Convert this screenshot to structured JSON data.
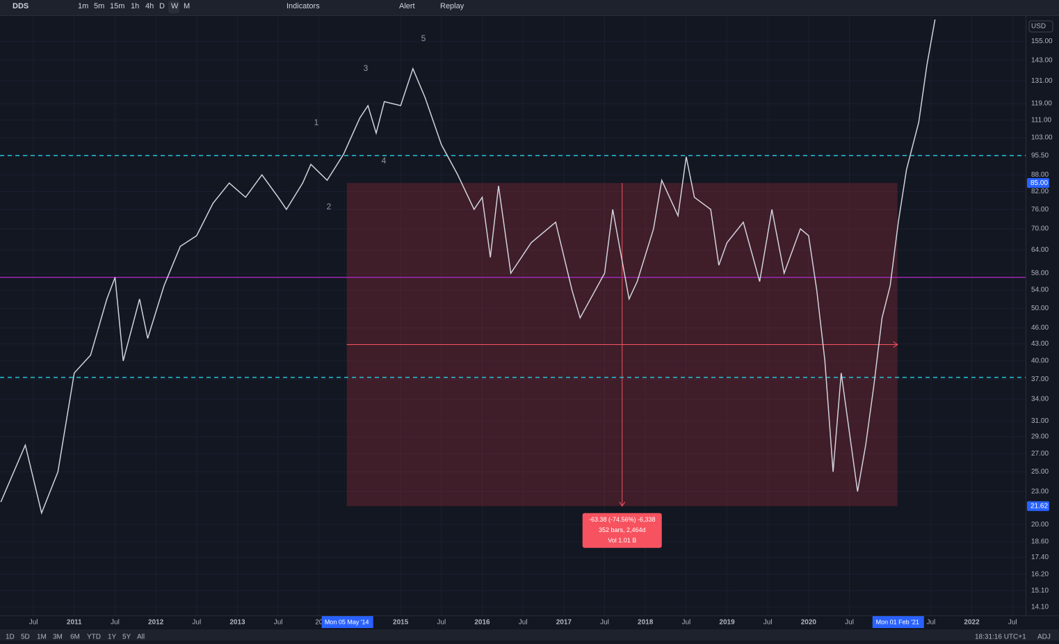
{
  "toolbar": {
    "symbol": "DDS",
    "intervals": [
      "1m",
      "5m",
      "15m",
      "1h",
      "4h",
      "D",
      "W",
      "M"
    ],
    "indicators": "Indicators",
    "alert": "Alert",
    "replay": "Replay"
  },
  "currency": "USD",
  "bottom_bar": {
    "ranges": [
      "1D",
      "5D",
      "1M",
      "3M",
      "6M",
      "YTD",
      "1Y",
      "5Y",
      "All"
    ],
    "clock": "18:31:16 UTC+1",
    "adj": "ADJ"
  },
  "chart_data": {
    "type": "line",
    "log_scale": true,
    "grid": true,
    "color": "#d1d4dc",
    "x": [
      2010.1,
      2010.4,
      2010.6,
      2010.8,
      2011.0,
      2011.2,
      2011.4,
      2011.5,
      2011.6,
      2011.8,
      2011.9,
      2012.1,
      2012.3,
      2012.5,
      2012.7,
      2012.9,
      2013.1,
      2013.3,
      2013.5,
      2013.6,
      2013.8,
      2013.9,
      2014.1,
      2014.3,
      2014.5,
      2014.6,
      2014.7,
      2014.8,
      2015.0,
      2015.15,
      2015.3,
      2015.5,
      2015.7,
      2015.9,
      2016.0,
      2016.1,
      2016.2,
      2016.35,
      2016.6,
      2016.9,
      2017.1,
      2017.2,
      2017.5,
      2017.6,
      2017.8,
      2017.9,
      2018.1,
      2018.2,
      2018.4,
      2018.5,
      2018.6,
      2018.8,
      2018.9,
      2019.0,
      2019.2,
      2019.4,
      2019.55,
      2019.7,
      2019.9,
      2020.0,
      2020.1,
      2020.2,
      2020.3,
      2020.4,
      2020.6,
      2020.7,
      2020.8,
      2020.9,
      2021.0,
      2021.1,
      2021.2,
      2021.35,
      2021.45,
      2021.55
    ],
    "values": [
      22,
      28,
      21,
      25,
      38,
      41,
      52,
      57,
      40,
      52,
      44,
      55,
      65,
      68,
      78,
      85,
      80,
      88,
      80,
      76,
      85,
      92,
      86,
      96,
      112,
      118,
      105,
      120,
      118,
      138,
      122,
      100,
      88,
      76,
      80,
      62,
      84,
      58,
      66,
      72,
      54,
      48,
      58,
      76,
      52,
      56,
      70,
      86,
      74,
      95,
      80,
      76,
      60,
      66,
      72,
      56,
      76,
      58,
      70,
      68,
      54,
      40,
      25,
      38,
      23,
      28,
      36,
      48,
      55,
      72,
      90,
      110,
      140,
      170
    ],
    "xlim": [
      2010.09,
      2022.66
    ],
    "ylim": [
      13.6,
      172
    ],
    "xticks": [
      {
        "value": 2010.5,
        "label": "Jul"
      },
      2011,
      {
        "value": 2011.5,
        "label": "Jul"
      },
      2012,
      {
        "value": 2012.5,
        "label": "Jul"
      },
      2013,
      {
        "value": 2013.5,
        "label": "Jul"
      },
      {
        "value": 2014,
        "label": "20"
      },
      2015,
      {
        "value": 2015.5,
        "label": "Jul"
      },
      2016,
      {
        "value": 2016.5,
        "label": "Jul"
      },
      2017,
      {
        "value": 2017.5,
        "label": "Jul"
      },
      2018,
      {
        "value": 2018.5,
        "label": "Jul"
      },
      2019,
      {
        "value": 2019.5,
        "label": "Jul"
      },
      2020,
      {
        "value": 2020.5,
        "label": "Jul"
      },
      {
        "value": 2021.5,
        "label": "Jul"
      },
      2022,
      {
        "value": 2022.5,
        "label": "Jul"
      }
    ],
    "yticks": [
      {
        "value": 155,
        "label": "155.00"
      },
      {
        "value": 143,
        "label": "143.00"
      },
      {
        "value": 131,
        "label": "131.00"
      },
      {
        "value": 119,
        "label": "119.00"
      },
      {
        "value": 111,
        "label": "111.00"
      },
      {
        "value": 103,
        "label": "103.00"
      },
      {
        "value": 95.5,
        "label": "95.50"
      },
      {
        "value": 88,
        "label": "88.00"
      },
      {
        "value": 82,
        "label": "82.00"
      },
      {
        "value": 76,
        "label": "76.00"
      },
      {
        "value": 70,
        "label": "70.00"
      },
      {
        "value": 64,
        "label": "64.00"
      },
      {
        "value": 58,
        "label": "58.00"
      },
      {
        "value": 54,
        "label": "54.00"
      },
      {
        "value": 50,
        "label": "50.00"
      },
      {
        "value": 46,
        "label": "46.00"
      },
      {
        "value": 43,
        "label": "43.00"
      },
      {
        "value": 40,
        "label": "40.00"
      },
      {
        "value": 37,
        "label": "37.00"
      },
      {
        "value": 34,
        "label": "34.00"
      },
      {
        "value": 31,
        "label": "31.00"
      },
      {
        "value": 29,
        "label": "29.00"
      },
      {
        "value": 27,
        "label": "27.00"
      },
      {
        "value": 25,
        "label": "25.00"
      },
      {
        "value": 23,
        "label": "23.00"
      },
      {
        "value": 20,
        "label": "20.00"
      },
      {
        "value": 18.6,
        "label": "18.60"
      },
      {
        "value": 17.4,
        "label": "17.40"
      },
      {
        "value": 16.2,
        "label": "16.20"
      },
      {
        "value": 15.1,
        "label": "15.10"
      },
      {
        "value": 14.1,
        "label": "14.10"
      }
    ],
    "price_markers": [
      {
        "value": 85,
        "label": "85.00"
      },
      {
        "value": 21.62,
        "label": "21.62"
      }
    ],
    "time_markers": [
      {
        "value": 2014.34,
        "label": "Mon 05 May '14"
      },
      {
        "value": 2021.09,
        "label": "Mon 01 Feb '21"
      }
    ],
    "hlines": [
      {
        "value": 95.5,
        "color": "#26c6da",
        "dashed": true
      },
      {
        "value": 37.3,
        "color": "#26c6da",
        "dashed": true
      },
      {
        "value": 57,
        "color": "#9c27b0",
        "dashed": false
      }
    ],
    "range": {
      "x": [
        2014.34,
        2021.09
      ],
      "y": [
        85,
        21.62
      ],
      "lines": [
        "-63.38 (-74.56%) -6,338",
        "352 bars, 2,464d",
        "Vol 1.01 B"
      ]
    },
    "wave_labels": [
      "1",
      "2",
      "3",
      "4",
      "5"
    ]
  }
}
